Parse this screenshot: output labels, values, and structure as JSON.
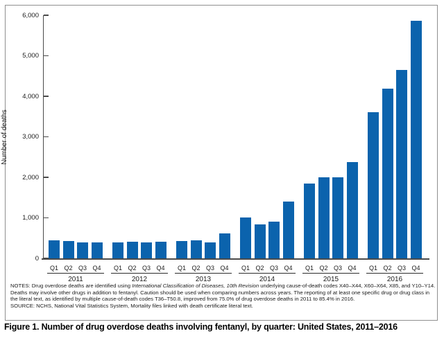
{
  "figure": {
    "caption": "Figure 1. Number of drug overdose deaths involving fentanyl, by quarter: United States, 2011–2016",
    "notes": {
      "prefix": "NOTES: Drug overdose deaths are identified using ",
      "italic": "International Classification of Diseases, 10th Revision",
      "suffix": " underlying cause-of-death codes X40–X44, X60–X64, X85, and Y10–Y14. Deaths may involve other drugs in addition to fentanyl. Caution should be used when comparing numbers across years. The reporting of at least one specific drug or drug class in the literal text, as identified by multiple cause-of-death codes T36–T50.8, improved from 75.0% of drug overdose deaths in 2011 to 85.4% in 2016.",
      "source": "SOURCE: NCHS, National Vital Statistics System, Mortality files linked with death certificate literal text."
    }
  },
  "colors": {
    "bar_blue": "#0b63ad",
    "axis_gray": "#4a4a4a",
    "border_gray": "#8f8f8f"
  },
  "chart_data": {
    "type": "bar",
    "title": "",
    "xlabel": "",
    "ylabel": "Number of deaths",
    "ylim": [
      0,
      6000
    ],
    "ytick_step": 1000,
    "ytick_labels": [
      "0",
      "1,000",
      "2,000",
      "3,000",
      "4,000",
      "5,000",
      "6,000"
    ],
    "grid": false,
    "legend_position": "none",
    "bar_color": "#0b63ad",
    "quarter_labels": [
      "Q1",
      "Q2",
      "Q3",
      "Q4"
    ],
    "series": [
      {
        "year": "2011",
        "values": [
          445,
          430,
          390,
          390
        ]
      },
      {
        "year": "2012",
        "values": [
          400,
          415,
          390,
          410
        ]
      },
      {
        "year": "2013",
        "values": [
          425,
          450,
          385,
          615
        ]
      },
      {
        "year": "2014",
        "values": [
          1005,
          840,
          910,
          1395
        ]
      },
      {
        "year": "2015",
        "values": [
          1850,
          2005,
          2005,
          2380
        ]
      },
      {
        "year": "2016",
        "values": [
          3615,
          4190,
          4650,
          5860
        ]
      }
    ]
  }
}
